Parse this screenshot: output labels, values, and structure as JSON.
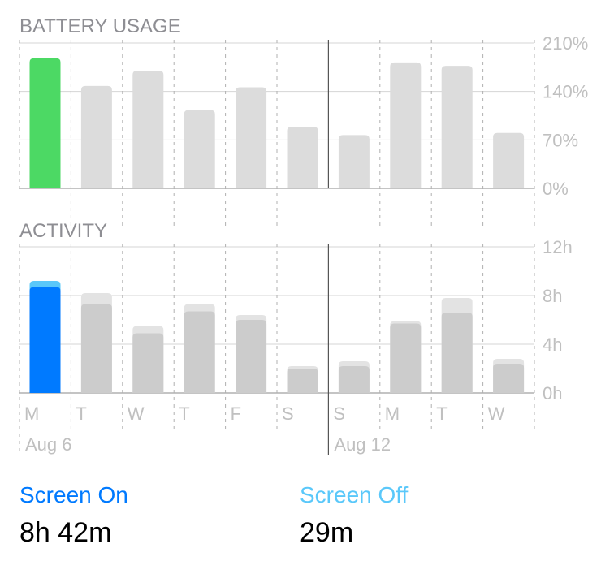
{
  "chart_data": [
    {
      "type": "bar",
      "title": "BATTERY USAGE",
      "categories": [
        "M",
        "T",
        "W",
        "T",
        "F",
        "S",
        "S",
        "M",
        "T",
        "W"
      ],
      "values": [
        188,
        148,
        170,
        113,
        146,
        89,
        77,
        182,
        177,
        80
      ],
      "ylim": [
        0,
        210
      ],
      "yticks": [
        "0%",
        "70%",
        "140%",
        "210%"
      ],
      "ytick_values": [
        0,
        70,
        140,
        210
      ],
      "highlight_index": 0,
      "colors": {
        "highlight": "#4cd964",
        "normal": "#dcdcdc"
      }
    },
    {
      "type": "bar",
      "stacked": true,
      "title": "ACTIVITY",
      "categories": [
        "M",
        "T",
        "W",
        "T",
        "F",
        "S",
        "S",
        "M",
        "T",
        "W"
      ],
      "series": [
        {
          "values": [
            8.7,
            7.3,
            4.9,
            6.7,
            6.0,
            2.0,
            2.2,
            5.7,
            6.6,
            2.4
          ]
        },
        {
          "values": [
            0.5,
            0.9,
            0.6,
            0.6,
            0.4,
            0.2,
            0.4,
            0.2,
            1.2,
            0.4
          ]
        }
      ],
      "ylim": [
        0,
        12
      ],
      "yticks": [
        "0h",
        "4h",
        "8h",
        "12h"
      ],
      "ytick_values": [
        0,
        4,
        8,
        12
      ],
      "highlight_index": 0,
      "colors": {
        "highlight_bottom": "#007aff",
        "highlight_top": "#5ac8fa",
        "normal_bottom": "#cccccc",
        "normal_top": "#e3e3e3"
      },
      "date_labels": [
        {
          "index": 0,
          "text": "Aug 6"
        },
        {
          "index": 6,
          "text": "Aug 12"
        }
      ]
    }
  ],
  "summary": {
    "screen_on": {
      "label": "Screen On",
      "value": "8h 42m",
      "color": "#007aff"
    },
    "screen_off": {
      "label": "Screen Off",
      "value": "29m",
      "color": "#5ac8fa"
    }
  },
  "colors": {
    "grid": "#d4d4d4",
    "axis": "#b0b0b0",
    "tick": "#c0c0c0",
    "title": "#8e8e93"
  }
}
